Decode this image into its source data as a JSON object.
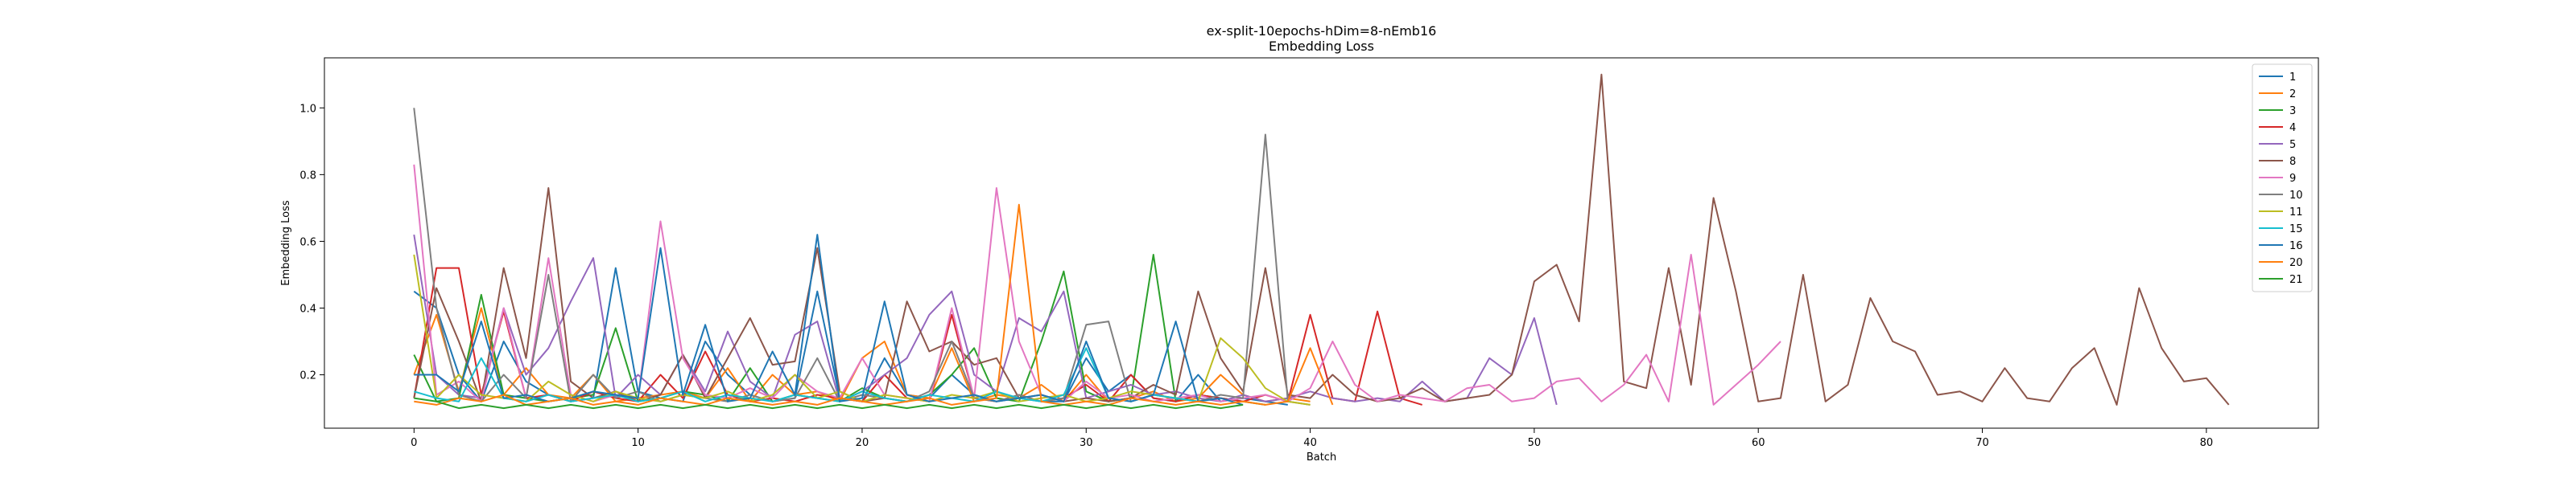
{
  "chart_data": {
    "type": "line",
    "title": "ex-split-10epochs-hDim=8-nEmb16",
    "subtitle": "Embedding Loss",
    "xlabel": "Batch",
    "ylabel": "Embedding Loss",
    "xlim": [
      -4,
      85
    ],
    "ylim": [
      0.04,
      1.15
    ],
    "xticks": [
      0,
      10,
      20,
      30,
      40,
      50,
      60,
      70,
      80
    ],
    "yticks": [
      0.2,
      0.4,
      0.6,
      0.8,
      1.0
    ],
    "xtick_labels": [
      "0",
      "10",
      "20",
      "30",
      "40",
      "50",
      "60",
      "70",
      "80"
    ],
    "ytick_labels": [
      "0.2",
      "0.4",
      "0.6",
      "0.8",
      "1.0"
    ],
    "grid": false,
    "legend_position": "top-right",
    "series": [
      {
        "name": "1",
        "color": "#1f77b4",
        "values": [
          0.45,
          0.4,
          0.2,
          0.12,
          0.3,
          0.18,
          0.14,
          0.12,
          0.13,
          0.52,
          0.15,
          0.13,
          0.12,
          0.3,
          0.2,
          0.14,
          0.12,
          0.13,
          0.45,
          0.13,
          0.12,
          0.25,
          0.14,
          0.13,
          0.2,
          0.14,
          0.12,
          0.13,
          0.12,
          0.12,
          0.25,
          0.15,
          0.2,
          0.13,
          0.12,
          0.2,
          0.12,
          0.13,
          0.12,
          0.11
        ]
      },
      {
        "name": "2",
        "color": "#ff7f0e",
        "values": [
          0.2,
          0.38,
          0.15,
          0.4,
          0.14,
          0.22,
          0.14,
          0.13,
          0.2,
          0.12,
          0.13,
          0.14,
          0.15,
          0.13,
          0.22,
          0.12,
          0.2,
          0.14,
          0.15,
          0.12,
          0.25,
          0.3,
          0.14,
          0.13,
          0.28,
          0.12,
          0.14,
          0.13,
          0.17,
          0.12,
          0.2,
          0.12,
          0.13,
          0.15,
          0.12,
          0.13,
          0.2,
          0.14,
          0.12,
          0.13,
          0.12
        ]
      },
      {
        "name": "3",
        "color": "#2ca02c",
        "values": [
          0.26,
          0.12,
          0.13,
          0.44,
          0.14,
          0.13,
          0.12,
          0.13,
          0.14,
          0.34,
          0.12,
          0.13,
          0.15,
          0.14,
          0.12,
          0.22,
          0.12,
          0.14,
          0.13,
          0.12,
          0.16,
          0.13,
          0.12,
          0.14,
          0.2,
          0.28,
          0.13,
          0.12,
          0.3,
          0.51,
          0.15,
          0.12,
          0.13,
          0.56,
          0.12,
          0.14,
          0.13,
          0.12,
          0.11
        ]
      },
      {
        "name": "4",
        "color": "#d62728",
        "values": [
          0.13,
          0.52,
          0.52,
          0.14,
          0.39,
          0.13,
          0.14,
          0.12,
          0.15,
          0.13,
          0.12,
          0.2,
          0.13,
          0.27,
          0.14,
          0.12,
          0.13,
          0.12,
          0.14,
          0.13,
          0.12,
          0.2,
          0.13,
          0.12,
          0.38,
          0.13,
          0.12,
          0.14,
          0.12,
          0.13,
          0.17,
          0.12,
          0.2,
          0.13,
          0.12,
          0.14,
          0.13,
          0.12,
          0.14,
          0.12,
          0.38,
          0.13,
          0.12,
          0.39,
          0.13,
          0.11
        ]
      },
      {
        "name": "5",
        "color": "#9467bd",
        "values": [
          0.62,
          0.2,
          0.14,
          0.13,
          0.4,
          0.2,
          0.28,
          0.42,
          0.55,
          0.13,
          0.2,
          0.14,
          0.26,
          0.15,
          0.33,
          0.18,
          0.13,
          0.32,
          0.36,
          0.12,
          0.15,
          0.2,
          0.25,
          0.38,
          0.45,
          0.2,
          0.15,
          0.37,
          0.33,
          0.45,
          0.13,
          0.15,
          0.17,
          0.14,
          0.15,
          0.13,
          0.12,
          0.14,
          0.12,
          0.13,
          0.15,
          0.13,
          0.12,
          0.13,
          0.12,
          0.18,
          0.12,
          0.13,
          0.25,
          0.2,
          0.37,
          0.11
        ]
      },
      {
        "name": "8",
        "color": "#8c564b",
        "values": [
          0.13,
          0.46,
          0.3,
          0.12,
          0.52,
          0.25,
          0.76,
          0.18,
          0.13,
          0.15,
          0.12,
          0.14,
          0.26,
          0.13,
          0.25,
          0.37,
          0.23,
          0.24,
          0.58,
          0.15,
          0.12,
          0.13,
          0.42,
          0.27,
          0.3,
          0.23,
          0.25,
          0.13,
          0.14,
          0.12,
          0.13,
          0.12,
          0.13,
          0.17,
          0.14,
          0.45,
          0.25,
          0.15,
          0.52,
          0.14,
          0.13,
          0.2,
          0.14,
          0.12,
          0.13,
          0.16,
          0.12,
          0.13,
          0.14,
          0.2,
          0.48,
          0.53,
          0.36,
          1.1,
          0.18,
          0.16,
          0.52,
          0.17,
          0.73,
          0.45,
          0.12,
          0.13,
          0.5,
          0.12,
          0.17,
          0.43,
          0.3,
          0.27,
          0.14,
          0.15,
          0.12,
          0.22,
          0.13,
          0.12,
          0.22,
          0.28,
          0.11,
          0.46,
          0.28,
          0.18,
          0.19,
          0.11
        ]
      },
      {
        "name": "9",
        "color": "#e377c2",
        "values": [
          0.83,
          0.14,
          0.18,
          0.12,
          0.4,
          0.13,
          0.55,
          0.14,
          0.12,
          0.14,
          0.13,
          0.66,
          0.25,
          0.14,
          0.13,
          0.16,
          0.13,
          0.2,
          0.15,
          0.13,
          0.25,
          0.14,
          0.13,
          0.12,
          0.4,
          0.13,
          0.76,
          0.3,
          0.14,
          0.12,
          0.18,
          0.13,
          0.14,
          0.12,
          0.13,
          0.14,
          0.12,
          0.13,
          0.14,
          0.12,
          0.16,
          0.3,
          0.17,
          0.12,
          0.14,
          0.13,
          0.12,
          0.16,
          0.17,
          0.12,
          0.13,
          0.18,
          0.19,
          0.12,
          0.17,
          0.26,
          0.12,
          0.56,
          0.11,
          0.17,
          0.23,
          0.3
        ]
      },
      {
        "name": "10",
        "color": "#7f7f7f",
        "values": [
          1.0,
          0.4,
          0.14,
          0.12,
          0.2,
          0.13,
          0.5,
          0.12,
          0.2,
          0.13,
          0.15,
          0.12,
          0.14,
          0.13,
          0.12,
          0.14,
          0.12,
          0.13,
          0.25,
          0.12,
          0.14,
          0.13,
          0.12,
          0.15,
          0.3,
          0.13,
          0.12,
          0.14,
          0.12,
          0.13,
          0.35,
          0.36,
          0.12,
          0.14,
          0.13,
          0.12,
          0.14,
          0.13,
          0.92,
          0.12,
          0.11
        ]
      },
      {
        "name": "11",
        "color": "#bcbd22",
        "values": [
          0.56,
          0.13,
          0.2,
          0.14,
          0.13,
          0.12,
          0.18,
          0.14,
          0.12,
          0.15,
          0.13,
          0.12,
          0.14,
          0.13,
          0.15,
          0.12,
          0.14,
          0.2,
          0.13,
          0.15,
          0.12,
          0.14,
          0.13,
          0.12,
          0.14,
          0.13,
          0.15,
          0.12,
          0.13,
          0.14,
          0.12,
          0.13,
          0.15,
          0.14,
          0.13,
          0.12,
          0.31,
          0.25,
          0.16,
          0.12,
          0.11
        ]
      },
      {
        "name": "15",
        "color": "#17becf",
        "values": [
          0.15,
          0.13,
          0.12,
          0.25,
          0.13,
          0.12,
          0.14,
          0.12,
          0.13,
          0.14,
          0.12,
          0.13,
          0.15,
          0.12,
          0.14,
          0.13,
          0.12,
          0.14,
          0.13,
          0.12,
          0.15,
          0.13,
          0.12,
          0.14,
          0.13,
          0.12,
          0.15,
          0.13,
          0.12,
          0.14,
          0.28,
          0.13,
          0.12,
          0.14,
          0.13,
          0.12
        ]
      },
      {
        "name": "16",
        "color": "#1f77b4",
        "values": [
          0.2,
          0.2,
          0.15,
          0.36,
          0.13,
          0.14,
          0.12,
          0.13,
          0.15,
          0.14,
          0.13,
          0.58,
          0.14,
          0.35,
          0.12,
          0.13,
          0.27,
          0.14,
          0.62,
          0.12,
          0.13,
          0.42,
          0.14,
          0.12,
          0.13,
          0.14,
          0.12,
          0.13,
          0.14,
          0.12,
          0.3,
          0.13,
          0.12,
          0.14,
          0.36,
          0.12,
          0.13,
          0.11
        ]
      },
      {
        "name": "20",
        "color": "#ff7f0e",
        "values": [
          0.12,
          0.11,
          0.13,
          0.12,
          0.14,
          0.11,
          0.12,
          0.13,
          0.11,
          0.12,
          0.11,
          0.13,
          0.12,
          0.11,
          0.13,
          0.12,
          0.11,
          0.12,
          0.11,
          0.13,
          0.12,
          0.11,
          0.12,
          0.13,
          0.11,
          0.12,
          0.13,
          0.71,
          0.12,
          0.11,
          0.12,
          0.11,
          0.13,
          0.12,
          0.11,
          0.12,
          0.11,
          0.12,
          0.11,
          0.12,
          0.28,
          0.11
        ]
      },
      {
        "name": "21",
        "color": "#2ca02c",
        "values": [
          0.13,
          0.12,
          0.1,
          0.11,
          0.1,
          0.11,
          0.1,
          0.11,
          0.1,
          0.11,
          0.1,
          0.11,
          0.1,
          0.11,
          0.1,
          0.11,
          0.1,
          0.11,
          0.1,
          0.11,
          0.1,
          0.11,
          0.1,
          0.11,
          0.1,
          0.11,
          0.1,
          0.11,
          0.1,
          0.11,
          0.1,
          0.11,
          0.1,
          0.11,
          0.1,
          0.11,
          0.1,
          0.11
        ]
      }
    ]
  }
}
